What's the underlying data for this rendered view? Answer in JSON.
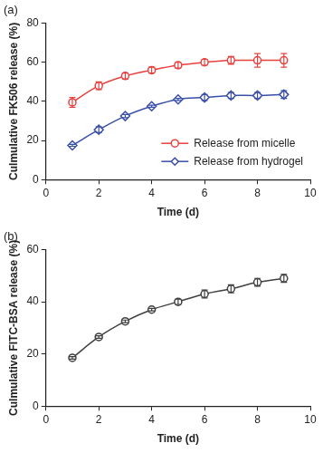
{
  "chart_data": [
    {
      "type": "line",
      "title": "(a)",
      "x_label": "Time (d)",
      "y_label": "Culmulative FK506 release (%)",
      "x": [
        1,
        2,
        3,
        4,
        5,
        6,
        7,
        8,
        9
      ],
      "series": [
        {
          "name": "Release from micelle",
          "color": "#e8403f",
          "marker": "circle",
          "values": [
            39.5,
            48,
            53,
            56,
            58.5,
            60,
            61,
            61,
            61
          ],
          "errors": [
            2.5,
            2,
            1.5,
            1.5,
            1.5,
            1.5,
            2,
            3.5,
            3.5
          ]
        },
        {
          "name": "Release from hydrogel",
          "color": "#3a4fa8",
          "marker": "diamond",
          "values": [
            17.5,
            25.5,
            32.5,
            37.5,
            41,
            42,
            43,
            43,
            43.5
          ],
          "errors": [
            0.5,
            1.5,
            0.8,
            0.5,
            0.5,
            1.5,
            1.5,
            1.5,
            2
          ]
        }
      ],
      "xlim": [
        0,
        10
      ],
      "xticks": [
        0,
        2,
        4,
        6,
        8,
        10
      ],
      "ylim": [
        0,
        80
      ],
      "yticks": [
        0,
        20,
        40,
        60,
        80
      ],
      "grid": false,
      "legend": "lower right"
    },
    {
      "type": "line",
      "title": "(b)",
      "x_label": "Time (d)",
      "y_label": "Culmulative FITC-BSA release (%)",
      "x": [
        1,
        2,
        3,
        4,
        5,
        6,
        7,
        8,
        9
      ],
      "color": "#404040",
      "marker": "circle",
      "values": [
        18.5,
        26.5,
        32.5,
        37,
        40,
        43,
        45,
        47.5,
        49
      ],
      "errors": [
        0.5,
        0.5,
        0.5,
        0.5,
        1,
        1.5,
        1.5,
        1.5,
        1.5
      ],
      "xlim": [
        0,
        10
      ],
      "xticks": [
        0,
        2,
        4,
        6,
        8,
        10
      ],
      "ylim": [
        0,
        60
      ],
      "yticks": [
        0,
        20,
        40,
        60
      ],
      "grid": false
    }
  ]
}
